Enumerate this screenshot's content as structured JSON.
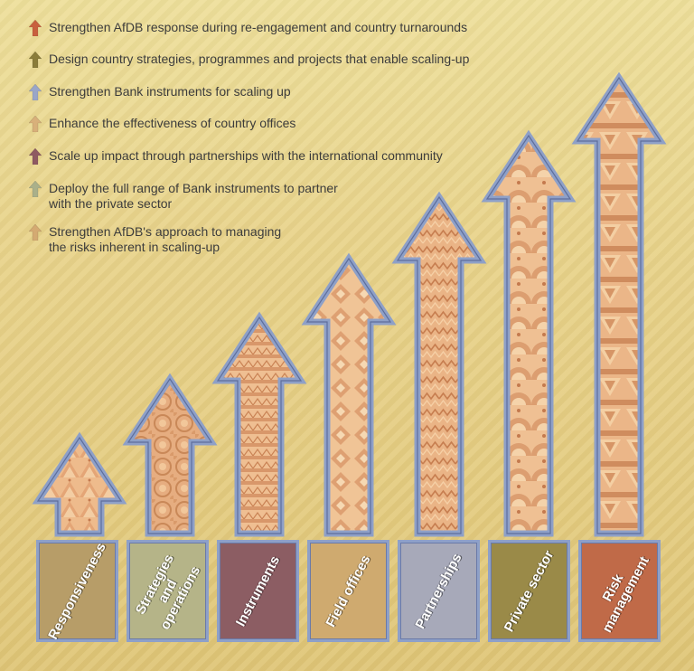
{
  "legend": [
    {
      "text": "Strengthen AfDB response during re-engagement and country turnarounds",
      "color": "#c8603e"
    },
    {
      "text": "Design country strategies, programmes and projects that enable scaling-up",
      "color": "#8a7c3a"
    },
    {
      "text": "Strengthen Bank instruments for scaling up",
      "color": "#9aa6c8"
    },
    {
      "text": "Enhance the effectiveness of country offices",
      "color": "#d8b07a"
    },
    {
      "text": "Scale up impact through partnerships with the international community",
      "color": "#8e5a62"
    },
    {
      "text": "Deploy the full range of Bank instruments to partner\nwith the private sector",
      "color": "#aab08a"
    },
    {
      "text": "Strengthen AfDB's approach to managing\nthe risks inherent in scaling-up",
      "color": "#d4aa72"
    }
  ],
  "categories": [
    {
      "label": "Responsiveness",
      "color": "#b79d68"
    },
    {
      "label": "Strategies\nand\noperations",
      "color": "#b5b488"
    },
    {
      "label": "Instruments",
      "color": "#8c5d63"
    },
    {
      "label": "Field offices",
      "color": "#cfaa6f"
    },
    {
      "label": "Partnerships",
      "color": "#a7a9b9"
    },
    {
      "label": "Private sector",
      "color": "#9a8a48"
    },
    {
      "label": "Risk\nmanagement",
      "color": "#c06a48"
    }
  ],
  "colors": {
    "arrow_outline": "#8ea0c8",
    "arrow_pattern_light": "#f0c89a",
    "arrow_pattern_mid": "#e2a878",
    "arrow_pattern_dark": "#c88456"
  }
}
